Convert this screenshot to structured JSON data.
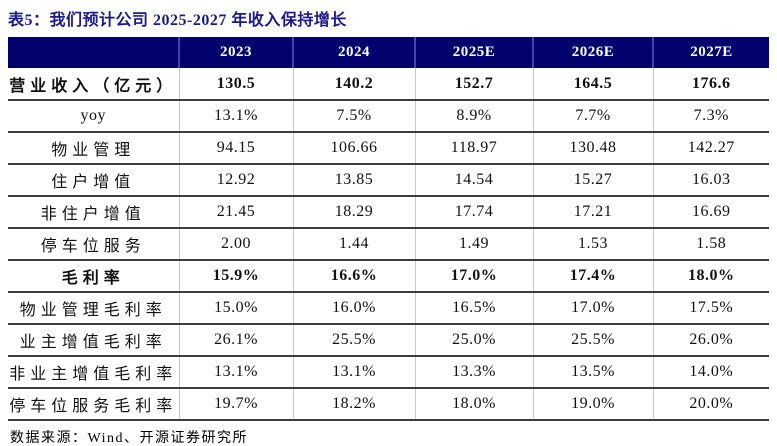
{
  "title": "表5：我们预计公司 2025-2027 年收入保持增长",
  "source": "数据来源：Wind、开源证券研究所",
  "colors": {
    "header_bg": "#02026F",
    "header_divider": "#4444A8",
    "title_text": "#1A1A8C",
    "row_line": "#3D3D3D",
    "column_line": "#C9C9C9"
  },
  "chart_data": {
    "type": "table",
    "title": "表5：我们预计公司 2025-2027 年收入保持增长",
    "columns": [
      "",
      "2023",
      "2024",
      "2025E",
      "2026E",
      "2027E"
    ],
    "rows": [
      {
        "label": "营业收入（亿元）",
        "bold": true,
        "values": [
          "130.5",
          "140.2",
          "152.7",
          "164.5",
          "176.6"
        ]
      },
      {
        "label": "yoy",
        "bold": false,
        "values": [
          "13.1%",
          "7.5%",
          "8.9%",
          "7.7%",
          "7.3%"
        ]
      },
      {
        "label": "物业管理",
        "bold": false,
        "values": [
          "94.15",
          "106.66",
          "118.97",
          "130.48",
          "142.27"
        ]
      },
      {
        "label": "住户增值",
        "bold": false,
        "values": [
          "12.92",
          "13.85",
          "14.54",
          "15.27",
          "16.03"
        ]
      },
      {
        "label": "非住户增值",
        "bold": false,
        "values": [
          "21.45",
          "18.29",
          "17.74",
          "17.21",
          "16.69"
        ]
      },
      {
        "label": "停车位服务",
        "bold": false,
        "values": [
          "2.00",
          "1.44",
          "1.49",
          "1.53",
          "1.58"
        ]
      },
      {
        "label": "毛利率",
        "bold": true,
        "values": [
          "15.9%",
          "16.6%",
          "17.0%",
          "17.4%",
          "18.0%"
        ]
      },
      {
        "label": "物业管理毛利率",
        "bold": false,
        "values": [
          "15.0%",
          "16.0%",
          "16.5%",
          "17.0%",
          "17.5%"
        ]
      },
      {
        "label": "业主增值毛利率",
        "bold": false,
        "values": [
          "26.1%",
          "25.5%",
          "25.0%",
          "25.5%",
          "26.0%"
        ]
      },
      {
        "label": "非业主增值毛利率",
        "bold": false,
        "values": [
          "13.1%",
          "13.1%",
          "13.3%",
          "13.5%",
          "14.0%"
        ]
      },
      {
        "label": "停车位服务毛利率",
        "bold": false,
        "values": [
          "19.7%",
          "18.2%",
          "18.0%",
          "19.0%",
          "20.0%"
        ]
      }
    ]
  }
}
